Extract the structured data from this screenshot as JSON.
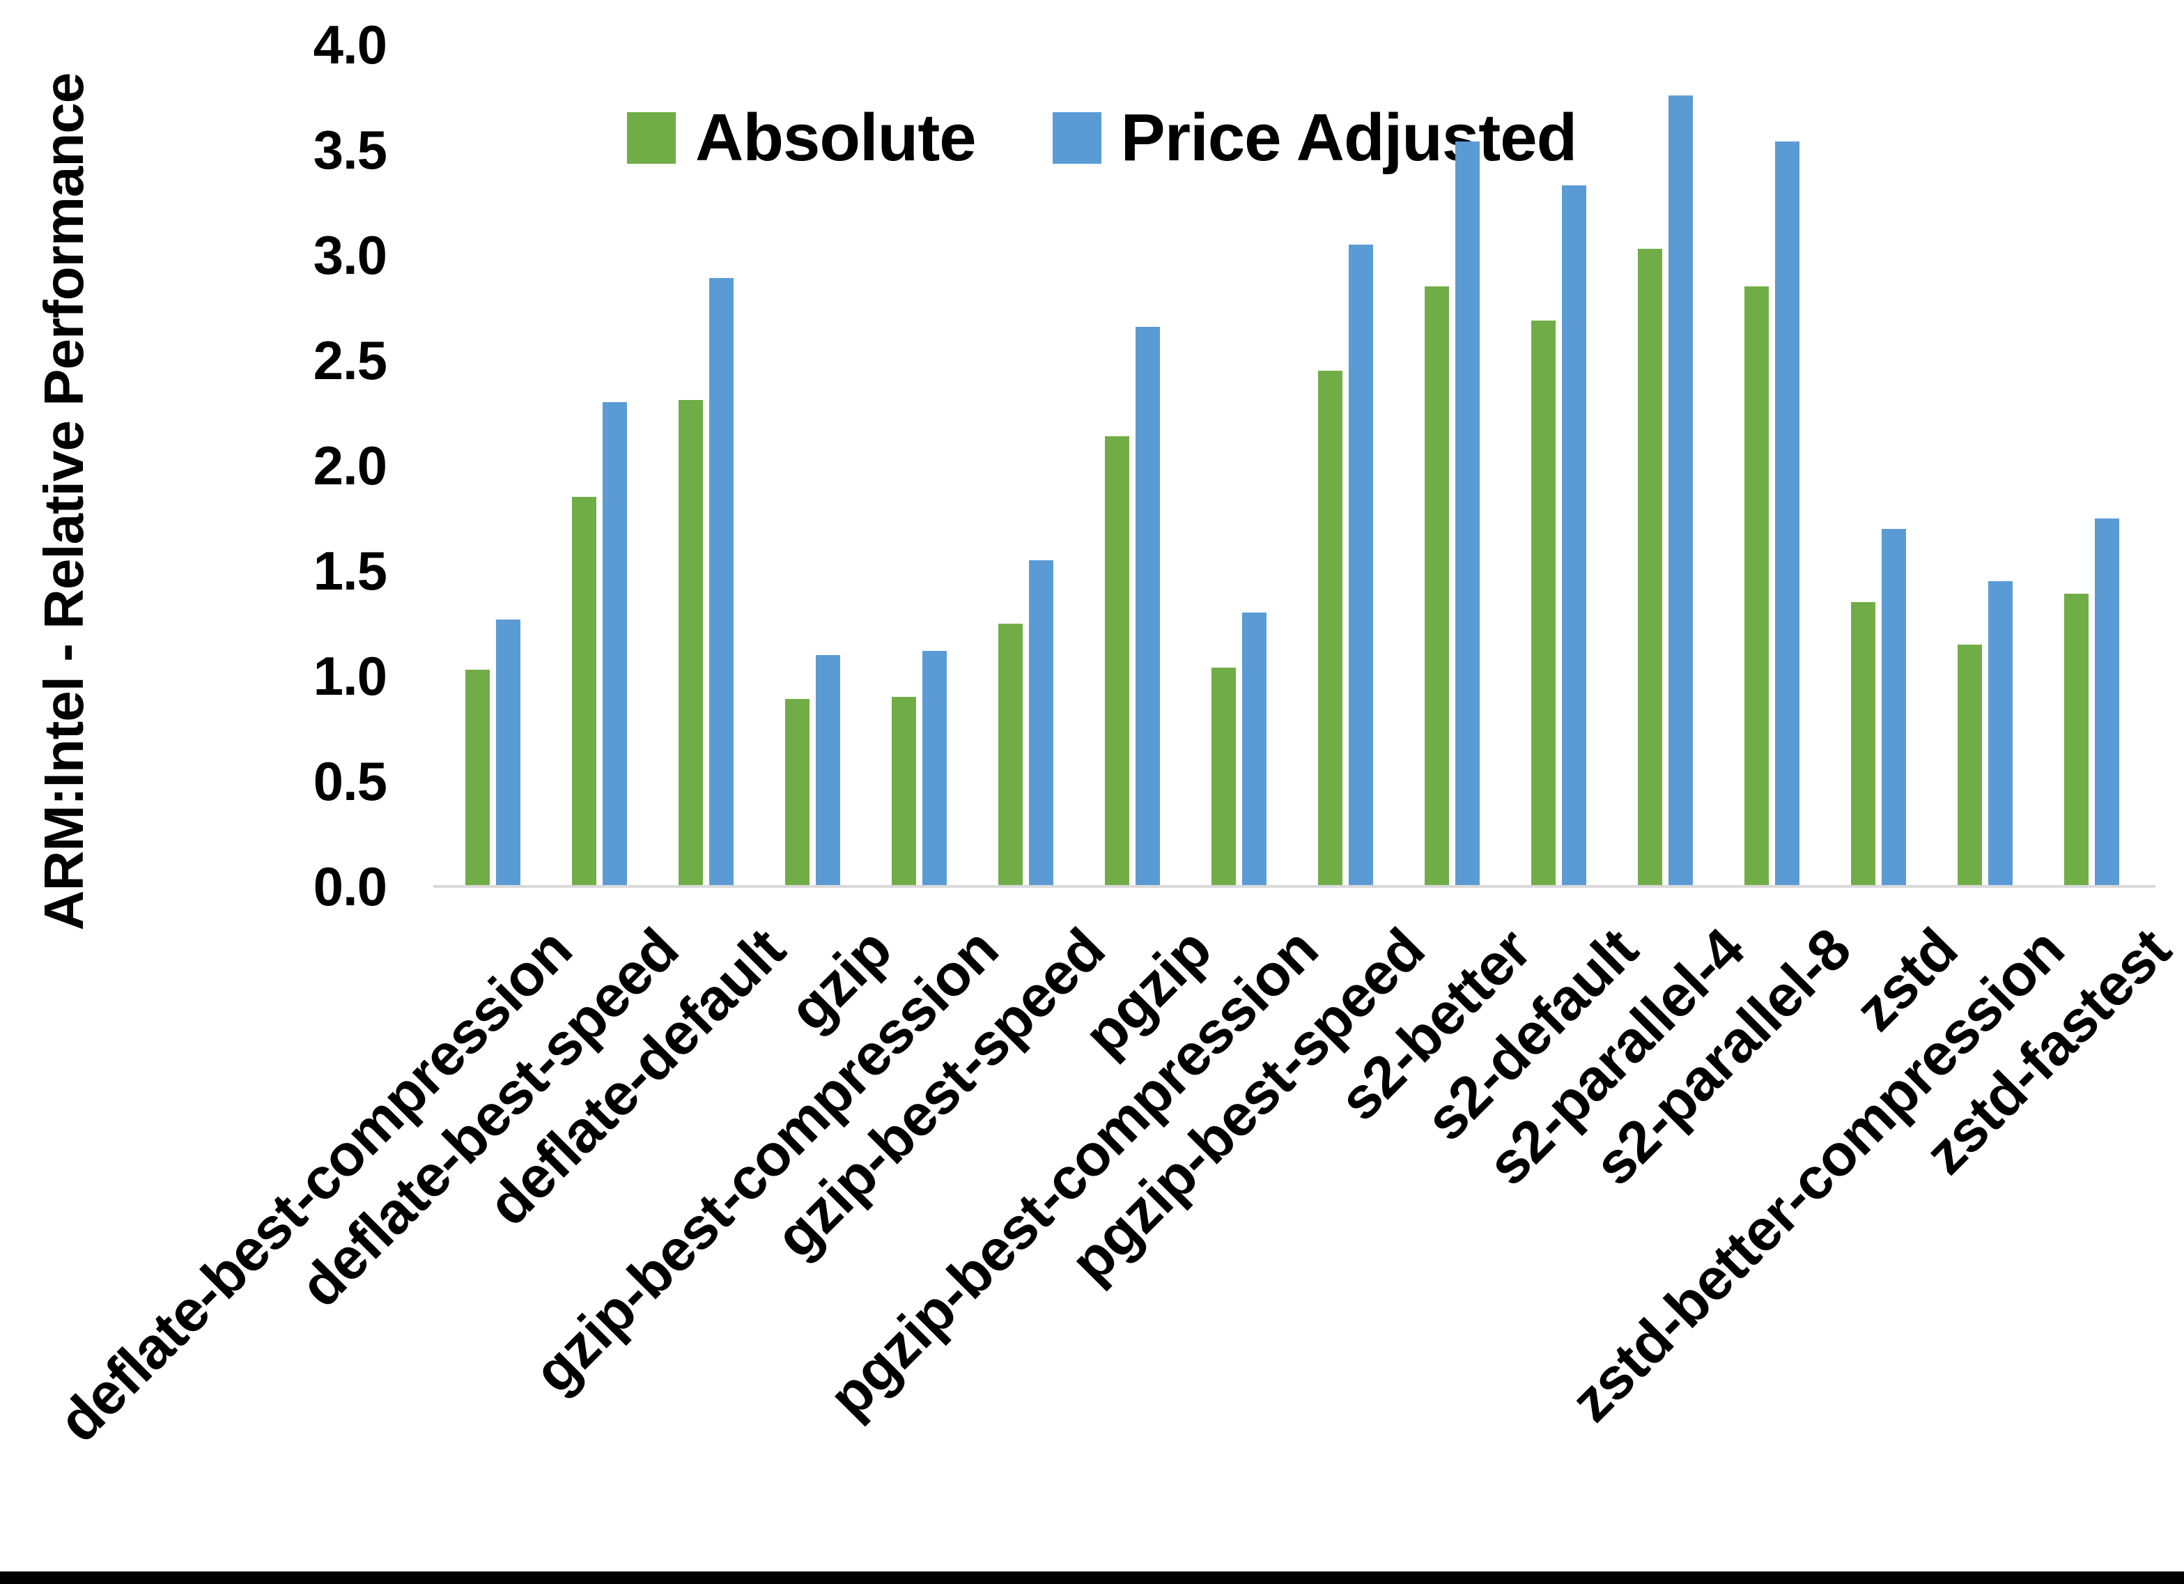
{
  "chart_data": {
    "type": "bar",
    "title": "",
    "xlabel": "",
    "ylabel": "ARM:Intel - Relative Performance",
    "ylim": [
      0.0,
      4.0
    ],
    "yticks": [
      "0.0",
      "0.5",
      "1.0",
      "1.5",
      "2.0",
      "2.5",
      "3.0",
      "3.5",
      "4.0"
    ],
    "grid": false,
    "legend_position": "top-center",
    "categories": [
      "deflate-best-compression",
      "deflate-best-speed",
      "deflate-default",
      "gzip",
      "gzip-best-compression",
      "gzip-best-speed",
      "pgzip",
      "pgzip-best-compression",
      "pgzip-best-speed",
      "s2-better",
      "s2-default",
      "s2-parallel-4",
      "s2-parallel-8",
      "zstd",
      "zstd-better-compression",
      "zstd-fastest"
    ],
    "series": [
      {
        "name": "Absolute",
        "color": "#70AD47",
        "values": [
          1.03,
          1.85,
          2.31,
          0.89,
          0.9,
          1.25,
          2.14,
          1.04,
          2.45,
          2.85,
          2.69,
          3.03,
          2.85,
          1.35,
          1.15,
          1.39
        ]
      },
      {
        "name": "Price Adjusted",
        "color": "#5B9BD5",
        "values": [
          1.27,
          2.3,
          2.89,
          1.1,
          1.12,
          1.55,
          2.66,
          1.3,
          3.05,
          3.54,
          3.33,
          3.76,
          3.54,
          1.7,
          1.45,
          1.75
        ]
      }
    ],
    "axis_line_color": "#D9D9D9",
    "text_color": "#000000"
  },
  "page": {
    "background": "#FFFFFF",
    "bottom_bar_color": "#000000"
  }
}
